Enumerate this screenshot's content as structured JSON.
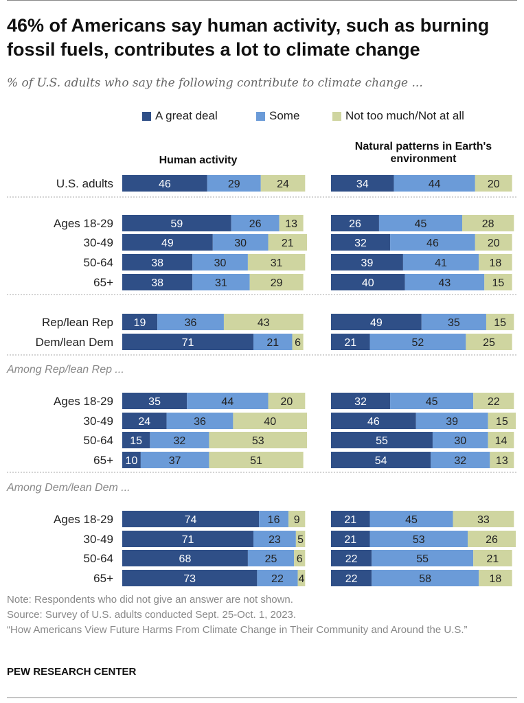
{
  "title": "46% of Americans say human activity, such as burning fossil fuels, contributes a lot to climate change",
  "subtitle": "% of U.S. adults who say the following contribute to climate change ...",
  "legend": [
    {
      "label": "A great deal",
      "color": "#2f4f87"
    },
    {
      "label": "Some",
      "color": "#6b9bd8"
    },
    {
      "label": "Not too much/Not at all",
      "color": "#cfd5a0"
    }
  ],
  "chart_data": {
    "type": "bar",
    "orientation": "horizontal",
    "stacked": true,
    "series_names": [
      "A great deal",
      "Some",
      "Not too much/Not at all"
    ],
    "panels": [
      {
        "title": "Human activity"
      },
      {
        "title": "Natural patterns in Earth's environment"
      }
    ],
    "section_labels": [
      "Among Rep/lean Rep ...",
      "Among Dem/lean Dem ..."
    ],
    "rows": [
      {
        "label": "U.S. adults",
        "human": [
          46,
          29,
          24
        ],
        "natural": [
          34,
          44,
          20
        ]
      },
      {
        "label": "Ages 18-29",
        "human": [
          59,
          26,
          13
        ],
        "natural": [
          26,
          45,
          28
        ]
      },
      {
        "label": "30-49",
        "human": [
          49,
          30,
          21
        ],
        "natural": [
          32,
          46,
          20
        ]
      },
      {
        "label": "50-64",
        "human": [
          38,
          30,
          31
        ],
        "natural": [
          39,
          41,
          18
        ]
      },
      {
        "label": "65+",
        "human": [
          38,
          31,
          29
        ],
        "natural": [
          40,
          43,
          15
        ]
      },
      {
        "label": "Rep/lean Rep",
        "human": [
          19,
          36,
          43
        ],
        "natural": [
          49,
          35,
          15
        ]
      },
      {
        "label": "Dem/lean Dem",
        "human": [
          71,
          21,
          6
        ],
        "natural": [
          21,
          52,
          25
        ]
      },
      {
        "label": "Ages 18-29",
        "human": [
          35,
          44,
          20
        ],
        "natural": [
          32,
          45,
          22
        ]
      },
      {
        "label": "30-49",
        "human": [
          24,
          36,
          40
        ],
        "natural": [
          46,
          39,
          15
        ]
      },
      {
        "label": "50-64",
        "human": [
          15,
          32,
          53
        ],
        "natural": [
          55,
          30,
          14
        ]
      },
      {
        "label": "65+",
        "human": [
          10,
          37,
          51
        ],
        "natural": [
          54,
          32,
          13
        ]
      },
      {
        "label": "Ages 18-29",
        "human": [
          74,
          16,
          9
        ],
        "natural": [
          21,
          45,
          33
        ]
      },
      {
        "label": "30-49",
        "human": [
          71,
          23,
          5
        ],
        "natural": [
          21,
          53,
          26
        ]
      },
      {
        "label": "50-64",
        "human": [
          68,
          25,
          6
        ],
        "natural": [
          22,
          55,
          21
        ]
      },
      {
        "label": "65+",
        "human": [
          73,
          22,
          4
        ],
        "natural": [
          22,
          58,
          18
        ]
      }
    ],
    "xlim": [
      0,
      100
    ]
  },
  "notes": {
    "note": "Note: Respondents who did not give an answer are not shown.",
    "source": "Source: Survey of U.S. adults conducted Sept. 25-Oct. 1, 2023.",
    "report": "“How Americans View Future Harms From Climate Change in Their Community and Around the U.S.”"
  },
  "brand": "PEW RESEARCH CENTER"
}
